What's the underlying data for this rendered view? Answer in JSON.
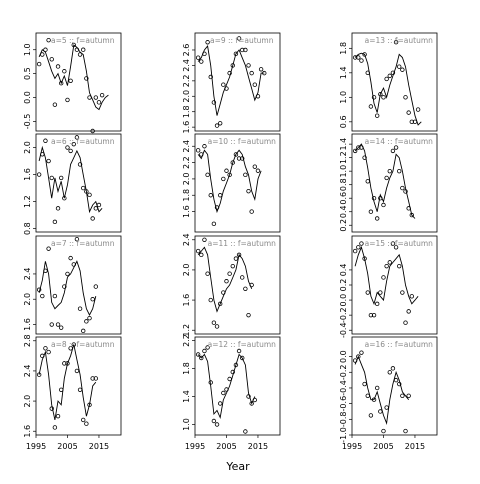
{
  "chart_data": {
    "type": "line",
    "xlabel": "Year",
    "xlim": [
      1995,
      2022
    ],
    "x_ticks": [
      1995,
      2005,
      2015
    ],
    "x": [
      1996,
      1997,
      1998,
      1999,
      2000,
      2001,
      2002,
      2003,
      2004,
      2005,
      2006,
      2007,
      2008,
      2009,
      2010,
      2011,
      2012,
      2013,
      2014,
      2015,
      2016,
      2017,
      2018,
      2019,
      2020,
      2021
    ],
    "panels": [
      {
        "label": "a=5 :: f=autumn",
        "ylim": [
          -0.7,
          1.35
        ],
        "y_ticks": [
          -0.5,
          0.0,
          0.5,
          1.0
        ],
        "fit": [
          0.85,
          1.0,
          0.95,
          0.75,
          0.55,
          0.4,
          0.5,
          0.3,
          0.45,
          0.25,
          0.65,
          1.1,
          1.05,
          0.95,
          0.9,
          0.55,
          0.1,
          -0.05,
          -0.2,
          -0.25,
          -0.1,
          0.0,
          0.05,
          null,
          null,
          null
        ],
        "points": [
          0.7,
          0.9,
          1.0,
          1.2,
          0.8,
          -0.15,
          0.65,
          0.3,
          0.55,
          -0.05,
          0.35,
          1.1,
          1.0,
          0.9,
          1.0,
          0.4,
          0.0,
          -0.7,
          0.0,
          -0.1,
          0.05,
          null,
          null,
          null,
          null,
          null
        ]
      },
      {
        "label": "a=9 :: f=autumn",
        "ylim": [
          1.55,
          2.82
        ],
        "y_ticks": [
          1.6,
          1.8,
          2.0,
          2.2,
          2.4,
          2.6
        ],
        "fit": [
          2.45,
          2.5,
          2.6,
          2.65,
          2.4,
          2.0,
          1.75,
          1.9,
          2.05,
          2.15,
          2.25,
          2.4,
          2.55,
          2.6,
          2.5,
          2.4,
          2.25,
          2.1,
          1.95,
          2.05,
          2.3,
          2.3,
          null,
          null,
          null,
          null
        ],
        "points": [
          2.5,
          2.45,
          2.55,
          2.7,
          2.25,
          1.92,
          1.62,
          1.65,
          2.15,
          2.1,
          2.3,
          2.4,
          2.55,
          2.75,
          2.6,
          2.6,
          2.4,
          2.3,
          2.15,
          2.0,
          2.35,
          2.3,
          null,
          null,
          null,
          null
        ]
      },
      {
        "label": "a=13 :: f=autumn",
        "ylim": [
          0.45,
          2.05
        ],
        "y_ticks": [
          0.6,
          1.0,
          1.4,
          1.8
        ],
        "fit": [
          1.65,
          1.7,
          1.72,
          1.7,
          1.55,
          1.25,
          0.9,
          0.75,
          1.05,
          1.15,
          1.0,
          1.2,
          1.35,
          1.5,
          1.7,
          1.65,
          1.5,
          1.2,
          0.95,
          0.7,
          0.55,
          0.6,
          null,
          null,
          null,
          null
        ],
        "points": [
          1.65,
          1.65,
          1.6,
          1.7,
          1.4,
          0.85,
          1.0,
          0.7,
          1.05,
          1.0,
          1.3,
          1.35,
          1.4,
          1.9,
          1.5,
          1.45,
          1.0,
          0.75,
          0.6,
          0.6,
          0.8,
          null,
          null,
          null,
          null,
          null
        ]
      },
      {
        "label": "a=6 :: f=autumn",
        "ylim": [
          0.75,
          2.2
        ],
        "y_ticks": [
          0.8,
          1.2,
          1.6,
          2.0
        ],
        "fit": [
          1.8,
          2.0,
          1.85,
          1.55,
          1.25,
          1.55,
          1.35,
          1.5,
          1.25,
          1.45,
          1.75,
          1.85,
          1.95,
          1.85,
          1.6,
          1.35,
          1.05,
          1.15,
          1.2,
          1.05,
          1.1,
          null,
          null,
          null,
          null,
          null
        ],
        "points": [
          1.6,
          1.9,
          2.1,
          1.8,
          1.55,
          0.9,
          1.1,
          1.55,
          1.25,
          2.0,
          1.95,
          2.05,
          2.15,
          1.75,
          1.4,
          1.35,
          1.3,
          0.95,
          1.1,
          1.15,
          null,
          null,
          null,
          null,
          null,
          null
        ]
      },
      {
        "label": "a=10 :: f=autumn",
        "ylim": [
          1.35,
          2.55
        ],
        "y_ticks": [
          1.6,
          1.8,
          2.0,
          2.2,
          2.4
        ],
        "fit": [
          2.3,
          2.25,
          2.35,
          2.3,
          2.0,
          1.75,
          1.6,
          1.7,
          1.85,
          1.95,
          2.05,
          2.2,
          2.3,
          2.35,
          2.3,
          2.15,
          2.05,
          1.85,
          1.75,
          2.0,
          2.1,
          null,
          null,
          null,
          null,
          null
        ],
        "points": [
          2.35,
          2.3,
          2.4,
          2.05,
          1.8,
          1.45,
          1.65,
          1.8,
          2.0,
          2.1,
          2.05,
          2.2,
          2.3,
          2.25,
          2.25,
          2.05,
          1.85,
          1.6,
          2.15,
          2.1,
          null,
          null,
          null,
          null,
          null,
          null
        ]
      },
      {
        "label": "a=14 :: f=autumn",
        "ylim": [
          0.1,
          1.55
        ],
        "y_ticks": [
          0.2,
          0.4,
          0.6,
          0.8,
          1.0,
          1.2,
          1.4
        ],
        "fit": [
          1.3,
          1.35,
          1.4,
          1.3,
          1.05,
          0.75,
          0.55,
          0.4,
          0.65,
          0.55,
          0.75,
          0.9,
          1.0,
          1.25,
          1.2,
          1.0,
          0.75,
          0.55,
          0.35,
          0.3,
          null,
          null,
          null,
          null,
          null,
          null
        ],
        "points": [
          1.3,
          1.35,
          1.35,
          1.2,
          0.85,
          0.4,
          0.6,
          0.3,
          0.6,
          0.5,
          0.9,
          1.0,
          1.3,
          1.35,
          1.0,
          0.75,
          0.7,
          0.45,
          0.35,
          null,
          null,
          null,
          null,
          null,
          null,
          null
        ]
      },
      {
        "label": "a=7 :: f=autumn",
        "ylim": [
          1.45,
          3.0
        ],
        "y_ticks": [
          1.6,
          2.0,
          2.4
        ],
        "fit": [
          2.1,
          2.3,
          2.6,
          2.4,
          1.95,
          1.85,
          1.9,
          1.95,
          2.1,
          2.35,
          2.4,
          2.5,
          2.6,
          2.45,
          2.1,
          1.85,
          1.75,
          1.85,
          2.05,
          null,
          null,
          null,
          null,
          null,
          null,
          null
        ],
        "points": [
          2.15,
          2.05,
          2.45,
          2.8,
          1.6,
          2.05,
          1.6,
          1.55,
          2.2,
          2.4,
          2.65,
          2.55,
          2.95,
          1.85,
          1.5,
          1.65,
          1.7,
          2.0,
          2.2,
          null,
          null,
          null,
          null,
          null,
          null,
          null
        ]
      },
      {
        "label": "a=11 :: f=autumn",
        "ylim": [
          1.15,
          2.45
        ],
        "y_ticks": [
          1.2,
          1.6,
          2.0,
          2.4
        ],
        "fit": [
          2.2,
          2.25,
          2.3,
          2.2,
          1.9,
          1.6,
          1.45,
          1.55,
          1.65,
          1.75,
          1.8,
          1.9,
          2.0,
          2.2,
          2.15,
          2.05,
          1.85,
          1.75,
          null,
          null,
          null,
          null,
          null,
          null,
          null,
          null
        ],
        "points": [
          2.25,
          2.2,
          2.4,
          1.95,
          1.6,
          1.3,
          1.25,
          1.55,
          1.7,
          1.85,
          1.95,
          2.05,
          2.15,
          2.2,
          1.9,
          1.75,
          1.4,
          1.8,
          null,
          null,
          null,
          null,
          null,
          null,
          null,
          null
        ]
      },
      {
        "label": "a=15 :: f=autumn",
        "ylim": [
          -0.45,
          0.85
        ],
        "y_ticks": [
          -0.4,
          -0.2,
          0.0,
          0.2,
          0.4
        ],
        "fit": [
          0.45,
          0.6,
          0.7,
          0.55,
          0.35,
          0.05,
          -0.05,
          0.1,
          0.05,
          0.0,
          0.25,
          0.45,
          0.5,
          0.55,
          0.6,
          0.45,
          0.2,
          0.05,
          -0.05,
          0.0,
          0.05,
          null,
          null,
          null,
          null,
          null
        ],
        "points": [
          0.65,
          0.7,
          0.75,
          0.55,
          0.1,
          -0.2,
          -0.2,
          -0.05,
          0.1,
          0.3,
          0.45,
          0.5,
          0.75,
          0.7,
          0.45,
          0.1,
          -0.3,
          -0.15,
          0.05,
          null,
          null,
          null,
          null,
          null,
          null,
          null
        ]
      },
      {
        "label": "a=8 :: f=autumn",
        "ylim": [
          1.55,
          2.85
        ],
        "y_ticks": [
          1.6,
          2.0,
          2.4,
          2.8
        ],
        "fit": [
          2.35,
          2.55,
          2.65,
          2.35,
          1.95,
          1.75,
          2.0,
          1.95,
          2.3,
          2.5,
          2.6,
          2.75,
          2.55,
          2.35,
          2.05,
          1.8,
          1.95,
          2.2,
          2.25,
          null,
          null,
          null,
          null,
          null,
          null,
          null
        ],
        "points": [
          2.35,
          2.6,
          2.7,
          2.65,
          1.9,
          1.65,
          1.8,
          2.15,
          2.5,
          2.5,
          2.7,
          2.75,
          2.4,
          2.15,
          1.75,
          1.7,
          1.95,
          2.3,
          2.3,
          null,
          null,
          null,
          null,
          null,
          null,
          null
        ]
      },
      {
        "label": "a=12 :: f=autumn",
        "ylim": [
          0.85,
          2.25
        ],
        "y_ticks": [
          1.0,
          1.4,
          1.8,
          2.2
        ],
        "fit": [
          2.0,
          1.95,
          2.0,
          1.9,
          1.55,
          1.15,
          1.2,
          1.1,
          1.35,
          1.45,
          1.55,
          1.7,
          1.85,
          2.0,
          1.95,
          1.85,
          1.45,
          1.3,
          1.4,
          null,
          null,
          null,
          null,
          null,
          null,
          null
        ],
        "points": [
          2.0,
          1.95,
          2.05,
          2.1,
          1.6,
          1.05,
          1.0,
          1.3,
          1.45,
          1.5,
          1.65,
          1.75,
          1.85,
          2.05,
          1.95,
          0.9,
          1.4,
          1.3,
          1.35,
          null,
          null,
          null,
          null,
          null,
          null,
          null
        ]
      },
      {
        "label": "a=16 :: f=autumn",
        "ylim": [
          -1.0,
          0.25
        ],
        "y_ticks": [
          -1.0,
          -0.8,
          -0.6,
          -0.4,
          -0.2,
          0.0
        ],
        "fit": [
          -0.1,
          0.0,
          -0.1,
          -0.2,
          -0.4,
          -0.55,
          -0.55,
          -0.45,
          -0.6,
          -0.75,
          -0.85,
          -0.55,
          -0.35,
          -0.2,
          -0.3,
          -0.45,
          -0.5,
          -0.55,
          null,
          null,
          null,
          null,
          null,
          null,
          null,
          null
        ],
        "points": [
          -0.05,
          0.0,
          0.05,
          -0.35,
          -0.5,
          -0.75,
          -0.55,
          -0.4,
          -0.7,
          -0.95,
          -0.65,
          -0.2,
          -0.15,
          -0.3,
          -0.35,
          -0.5,
          -0.95,
          -0.5,
          null,
          null,
          null,
          null,
          null,
          null,
          null,
          null
        ]
      }
    ]
  }
}
